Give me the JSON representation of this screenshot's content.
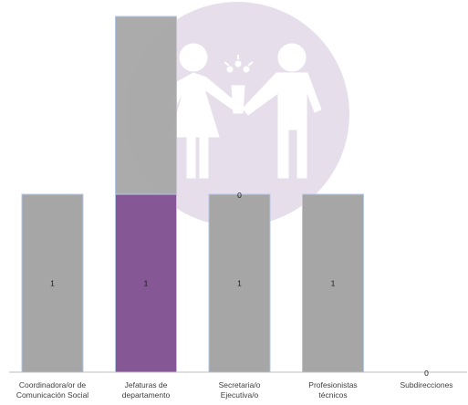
{
  "chart_data": {
    "type": "bar",
    "stacked": true,
    "categories": [
      [
        "Coordinadora/or de",
        "Comunicación Social"
      ],
      [
        "Jefaturas de",
        "departamento"
      ],
      [
        "Secretaria/o",
        "Ejecutiva/o"
      ],
      [
        "Profesionistas",
        "técnicos"
      ],
      [
        "Subdirecciones"
      ]
    ],
    "series": [
      {
        "values": [
          1,
          1,
          1,
          1,
          0
        ],
        "labels": [
          "1",
          "1",
          "1",
          "1",
          "0"
        ],
        "colors": [
          "#a6a6a6",
          "#855795",
          "#a6a6a6",
          "#a6a6a6",
          "#a6a6a6"
        ]
      },
      {
        "values": [
          0,
          1,
          0,
          0,
          0
        ],
        "labels": [
          "",
          "",
          "0",
          "",
          ""
        ],
        "color": "#a6a6a6"
      }
    ],
    "ylim": [
      0,
      2
    ],
    "grid": false,
    "legend": "none",
    "title": "",
    "xlabel": "",
    "ylabel": ""
  },
  "colors": {
    "watermark_circle": "#e6dfeb",
    "watermark_figures": "#ffffff",
    "bar_border": "#b4c7e7",
    "axis": "#bfbfbf"
  },
  "icons": {
    "background": "couple-holding-flowers-icon"
  }
}
